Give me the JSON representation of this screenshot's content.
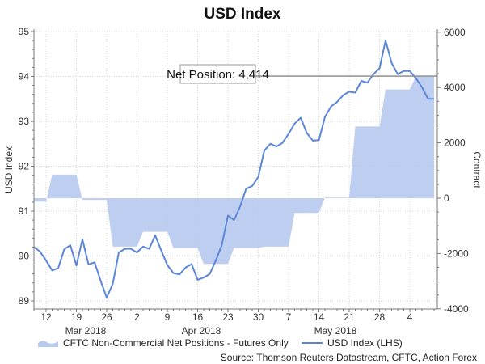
{
  "chart_data": {
    "type": "line",
    "title": "USD Index",
    "ylabel_left": "USD Index",
    "ylabel_right": "Contract",
    "ylim_left": [
      89,
      95
    ],
    "ylim_right": [
      -4000,
      6000
    ],
    "yticks_left": [
      89,
      90,
      91,
      92,
      93,
      94,
      95
    ],
    "yticks_right": [
      -4000,
      -2000,
      0,
      2000,
      4000,
      6000
    ],
    "grid": true,
    "legend_position": "bottom",
    "x_ticks": [
      {
        "label": "12",
        "date": "2018-03-12"
      },
      {
        "label": "19",
        "date": "2018-03-19"
      },
      {
        "label": "26",
        "date": "2018-03-26"
      },
      {
        "label": "2",
        "date": "2018-04-02"
      },
      {
        "label": "9",
        "date": "2018-04-09"
      },
      {
        "label": "16",
        "date": "2018-04-16"
      },
      {
        "label": "23",
        "date": "2018-04-23"
      },
      {
        "label": "30",
        "date": "2018-04-30"
      },
      {
        "label": "7",
        "date": "2018-05-07"
      },
      {
        "label": "14",
        "date": "2018-05-14"
      },
      {
        "label": "21",
        "date": "2018-05-21"
      },
      {
        "label": "28",
        "date": "2018-05-28"
      },
      {
        "label": "4",
        "date": "2018-06-04"
      }
    ],
    "month_labels": [
      "Mar 2018",
      "Apr 2018",
      "May 2018"
    ],
    "x": [
      "2018-03-08",
      "2018-03-09",
      "2018-03-12",
      "2018-03-13",
      "2018-03-14",
      "2018-03-15",
      "2018-03-16",
      "2018-03-19",
      "2018-03-20",
      "2018-03-21",
      "2018-03-22",
      "2018-03-23",
      "2018-03-26",
      "2018-03-27",
      "2018-03-28",
      "2018-03-29",
      "2018-03-30",
      "2018-04-02",
      "2018-04-03",
      "2018-04-04",
      "2018-04-05",
      "2018-04-06",
      "2018-04-09",
      "2018-04-10",
      "2018-04-11",
      "2018-04-12",
      "2018-04-13",
      "2018-04-16",
      "2018-04-17",
      "2018-04-18",
      "2018-04-19",
      "2018-04-20",
      "2018-04-23",
      "2018-04-24",
      "2018-04-25",
      "2018-04-26",
      "2018-04-27",
      "2018-04-30",
      "2018-05-01",
      "2018-05-02",
      "2018-05-03",
      "2018-05-04",
      "2018-05-07",
      "2018-05-08",
      "2018-05-09",
      "2018-05-10",
      "2018-05-11",
      "2018-05-14",
      "2018-05-15",
      "2018-05-16",
      "2018-05-17",
      "2018-05-18",
      "2018-05-21",
      "2018-05-22",
      "2018-05-23",
      "2018-05-24",
      "2018-05-25",
      "2018-05-28",
      "2018-05-29",
      "2018-05-30",
      "2018-05-31",
      "2018-06-01",
      "2018-06-04",
      "2018-06-05",
      "2018-06-06",
      "2018-06-07",
      "2018-06-08"
    ],
    "series": [
      {
        "name": "USD Index (LHS)",
        "type": "line",
        "axis": "left",
        "color": "#5b86d9",
        "values": [
          90.2,
          90.1,
          89.9,
          89.68,
          89.73,
          90.15,
          90.24,
          89.79,
          90.37,
          89.81,
          89.86,
          89.45,
          89.07,
          89.38,
          90.08,
          90.16,
          90.16,
          90.08,
          90.21,
          90.16,
          90.46,
          90.12,
          89.8,
          89.62,
          89.59,
          89.74,
          89.82,
          89.47,
          89.52,
          89.6,
          89.9,
          90.25,
          90.9,
          90.8,
          91.1,
          91.5,
          91.56,
          91.76,
          92.35,
          92.5,
          92.44,
          92.52,
          92.72,
          92.95,
          93.08,
          92.74,
          92.57,
          92.58,
          93.1,
          93.33,
          93.43,
          93.58,
          93.66,
          93.64,
          93.9,
          93.86,
          94.05,
          94.18,
          94.8,
          94.3,
          94.05,
          94.12,
          94.12,
          93.96,
          93.76,
          93.5,
          93.5
        ]
      },
      {
        "name": "CFTC Non-Commercial Net Positions - Futures Only",
        "type": "area",
        "axis": "right",
        "color": "#b7c9ef",
        "weekly": [
          {
            "date": "2018-03-06",
            "value": -125
          },
          {
            "date": "2018-03-13",
            "value": 850
          },
          {
            "date": "2018-03-20",
            "value": -60
          },
          {
            "date": "2018-03-27",
            "value": -1750
          },
          {
            "date": "2018-04-03",
            "value": -1215
          },
          {
            "date": "2018-04-10",
            "value": -1800
          },
          {
            "date": "2018-04-17",
            "value": -2380
          },
          {
            "date": "2018-04-24",
            "value": -1800
          },
          {
            "date": "2018-05-01",
            "value": -1750
          },
          {
            "date": "2018-05-08",
            "value": -535
          },
          {
            "date": "2018-05-15",
            "value": 20
          },
          {
            "date": "2018-05-22",
            "value": 2590
          },
          {
            "date": "2018-05-29",
            "value": 3930
          },
          {
            "date": "2018-06-05",
            "value": 4414
          }
        ]
      }
    ],
    "annotation": {
      "text": "Net Position: 4,414",
      "value": 4414
    },
    "source": "Source: Thomson Reuters Datastream, CFTC, Action Forex"
  }
}
